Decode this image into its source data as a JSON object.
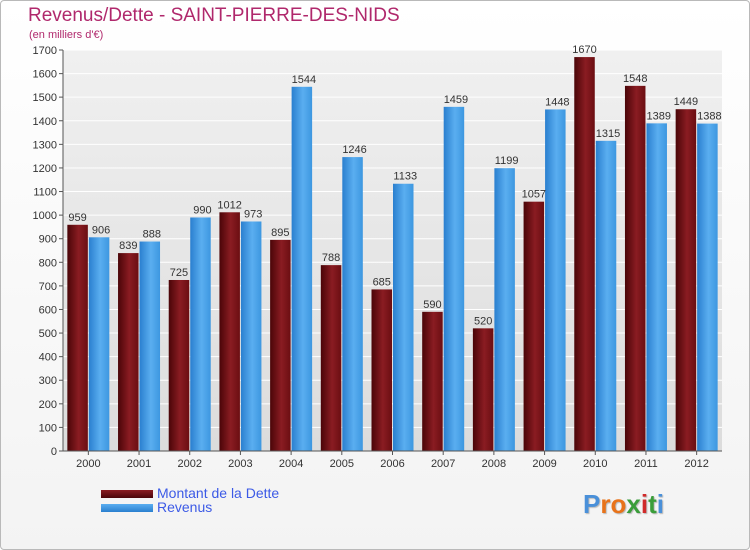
{
  "title": "Revenus/Dette - SAINT-PIERRE-DES-NIDS",
  "subtitle": "(en milliers d'€)",
  "colors": {
    "dette": "#6b0e12",
    "revenus": "#3d97e0",
    "title": "#b0286c",
    "legend_text": "#3c5ae6"
  },
  "legend": {
    "dette_label": "Montant de la Dette",
    "revenus_label": "Revenus"
  },
  "logo": {
    "text": "Proxiti",
    "letters": [
      "P",
      "r",
      "o",
      "x",
      "i",
      "t",
      "i"
    ],
    "colors": [
      "#4a90d9",
      "#e8731a",
      "#e8731a",
      "#3a9d3a",
      "#d02a2a",
      "#3a9d3a",
      "#4a90d9"
    ]
  },
  "chart_data": {
    "type": "bar",
    "title": "Revenus/Dette - SAINT-PIERRE-DES-NIDS",
    "ylabel": "(en milliers d'€)",
    "xlabel": "",
    "categories": [
      "2000",
      "2001",
      "2002",
      "2003",
      "2004",
      "2005",
      "2006",
      "2007",
      "2008",
      "2009",
      "2010",
      "2011",
      "2012"
    ],
    "series": [
      {
        "name": "Montant de la Dette",
        "values": [
          959,
          839,
          725,
          1012,
          895,
          788,
          685,
          590,
          520,
          1057,
          1670,
          1548,
          1449
        ],
        "labels": [
          "959",
          "839",
          "725",
          "1012",
          "895",
          "788",
          "685",
          "590",
          "520",
          "1057",
          "1670",
          "1548",
          "1449"
        ]
      },
      {
        "name": "Revenus",
        "values": [
          906,
          888,
          990,
          973,
          1544,
          1246,
          1133,
          1459,
          1199,
          1448,
          1315,
          1389,
          1388
        ],
        "labels": [
          "906",
          "888",
          "990",
          "973",
          "1544",
          "1246",
          "1133",
          "1459",
          "1199",
          "1448",
          "1315",
          "1389",
          "1388"
        ]
      }
    ],
    "ylim": [
      0,
      1700
    ],
    "yticks": [
      "0",
      "100",
      "200",
      "300",
      "400",
      "500",
      "600",
      "700",
      "800",
      "900",
      "1000",
      "1100",
      "1200",
      "1300",
      "1400",
      "1500",
      "1600",
      "1700"
    ],
    "grid": true,
    "legend": "bottom-left"
  }
}
